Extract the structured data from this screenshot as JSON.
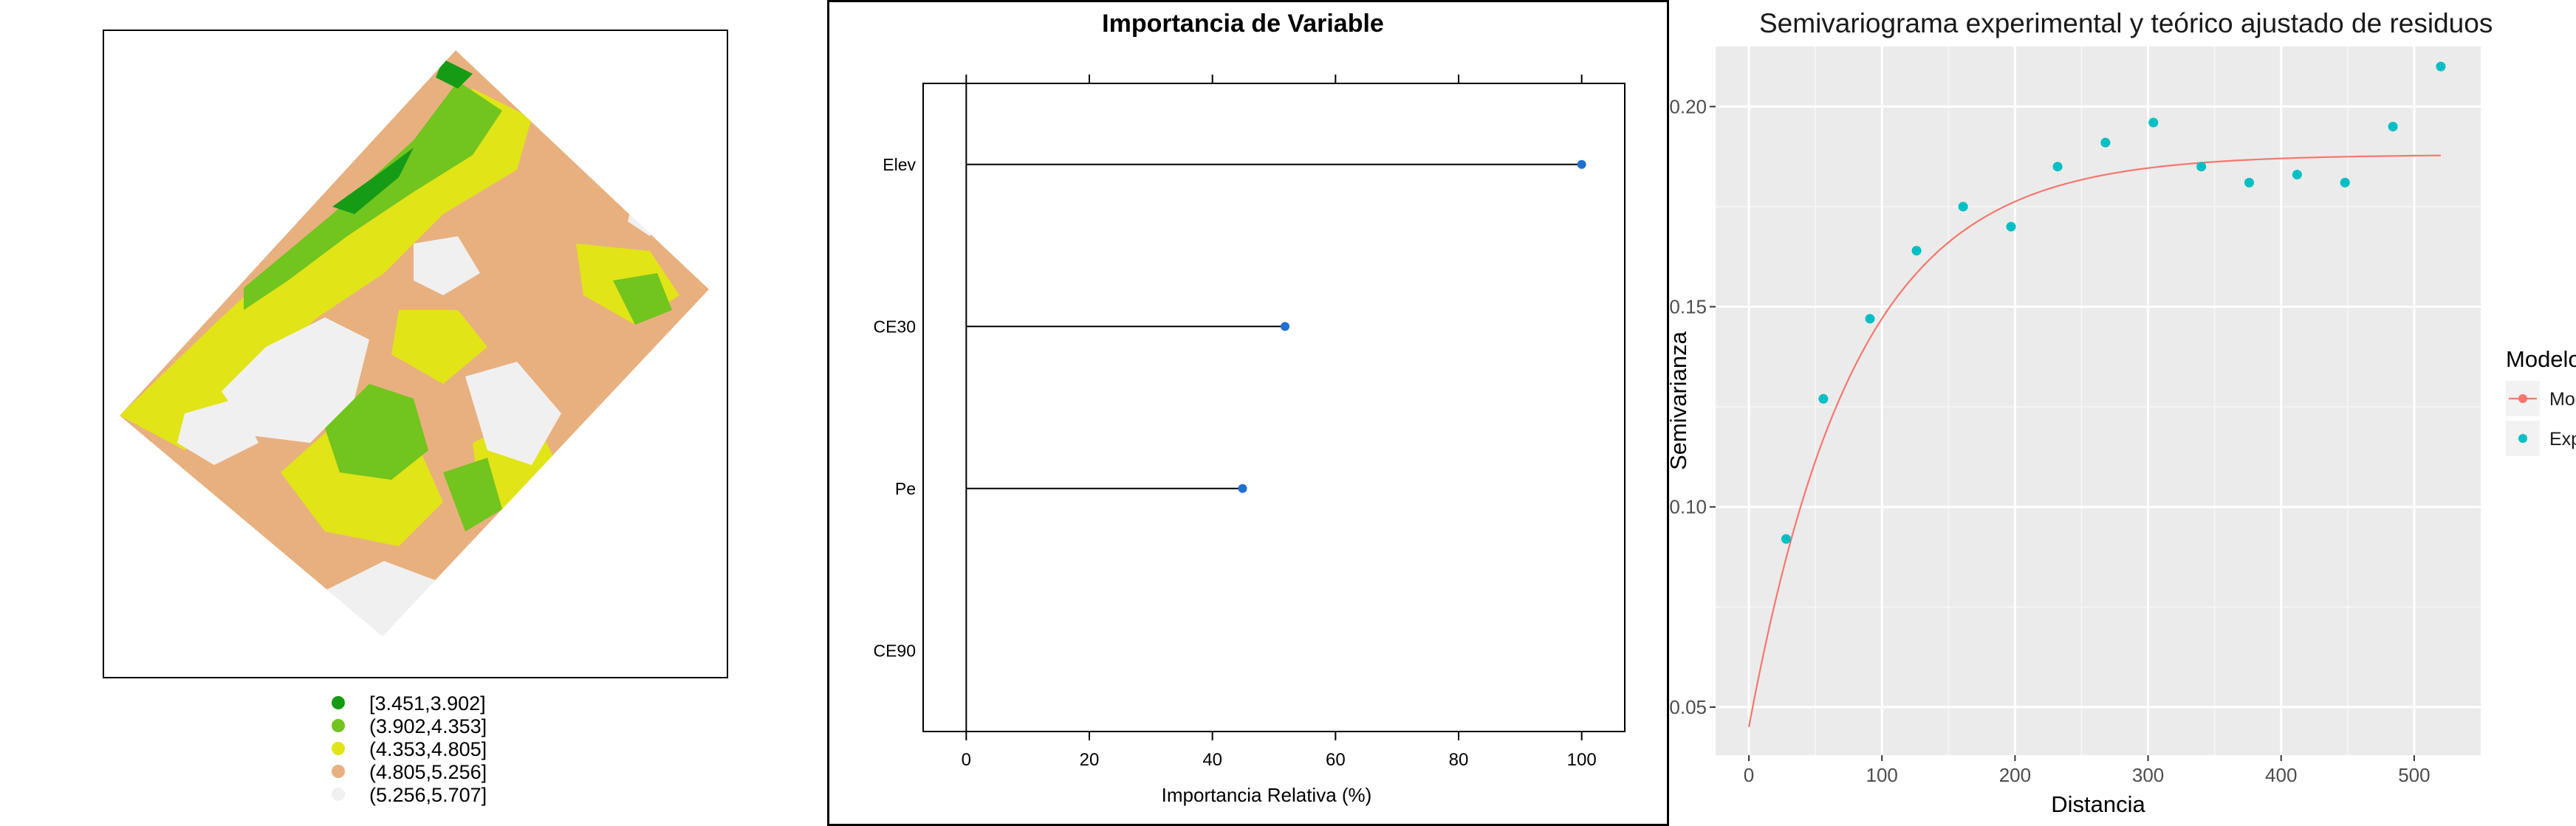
{
  "figure": {
    "panels": 3
  },
  "map_panel": {
    "legend": [
      {
        "label": "[3.451,3.902]",
        "color": "#159b15"
      },
      {
        "label": "(3.902,4.353]",
        "color": "#72c41f"
      },
      {
        "label": "(4.353,4.805]",
        "color": "#e1e417"
      },
      {
        "label": "(4.805,5.256]",
        "color": "#e8b07f"
      },
      {
        "label": "(5.256,5.707]",
        "color": "#f0f0f0"
      }
    ]
  },
  "chart_data": [
    {
      "type": "lollipop",
      "title": "Importancia de Variable",
      "xlabel": "Importancia Relativa (%)",
      "ylabel": "",
      "categories": [
        "Elev",
        "CE30",
        "Pe",
        "CE90"
      ],
      "values": [
        100,
        51.8,
        44.9,
        0
      ],
      "xlim": [
        -7,
        107
      ],
      "xticks": [
        0,
        20,
        40,
        60,
        80,
        100
      ],
      "xtick_labels": [
        "0",
        "20",
        "40",
        "60",
        "80",
        "100"
      ],
      "point_color": "#1f6fd1",
      "grid": false
    },
    {
      "type": "line",
      "title": "Semivariograma experimental y teórico ajustado de residuos",
      "xlabel": "Distancia",
      "ylabel": "Semivarianza",
      "xlim": [
        -25,
        550
      ],
      "ylim": [
        0.038,
        0.215
      ],
      "xticks": [
        0,
        100,
        200,
        300,
        400,
        500
      ],
      "xtick_labels": [
        "0",
        "100",
        "200",
        "300",
        "400",
        "500"
      ],
      "yticks": [
        0.05,
        0.1,
        0.15,
        0.2
      ],
      "ytick_labels": [
        "0.05",
        "0.10",
        "0.15",
        "0.20"
      ],
      "grid": true,
      "legend_title": "Modelo",
      "legend_position": "right",
      "series": [
        {
          "name": "Modelo teorico: Exp",
          "kind": "line",
          "color": "#f8766d",
          "model": {
            "type": "exponential",
            "nugget": 0.045,
            "sill": 0.188,
            "range": 80
          },
          "x_start": 0,
          "x_end": 520
        },
        {
          "name": "Experimental",
          "kind": "points",
          "color": "#00bfc4",
          "x": [
            28,
            56,
            91,
            126,
            161,
            197,
            232,
            268,
            304,
            340,
            376,
            412,
            448,
            484,
            520
          ],
          "y": [
            0.092,
            0.127,
            0.147,
            0.164,
            0.175,
            0.17,
            0.185,
            0.191,
            0.196,
            0.185,
            0.181,
            0.183,
            0.181,
            0.195,
            0.21
          ]
        }
      ]
    }
  ]
}
